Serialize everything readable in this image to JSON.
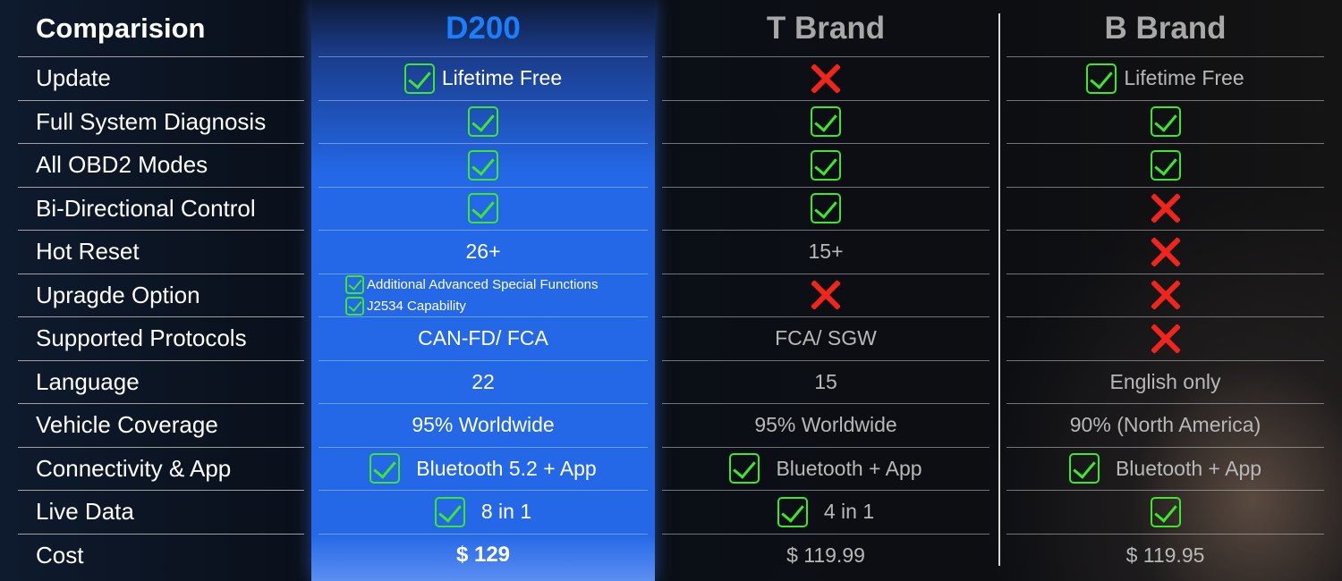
{
  "header": {
    "label_title": "Comparision",
    "products": [
      {
        "name": "D200",
        "color": "#1a7fff"
      },
      {
        "name": "T Brand",
        "color": "#a8a8a8"
      },
      {
        "name": "B Brand",
        "color": "#a8a8a8"
      }
    ]
  },
  "colors": {
    "check": "#3ce82a",
    "cross": "#f2241b",
    "highlight": "#2468e8"
  },
  "rows": [
    {
      "label": "Update",
      "cells": [
        {
          "icon": "check",
          "text": "Lifetime Free"
        },
        {
          "icon": "cross"
        },
        {
          "icon": "check",
          "text": "Lifetime Free"
        }
      ]
    },
    {
      "label": "Full System Diagnosis",
      "cells": [
        {
          "icon": "check"
        },
        {
          "icon": "check"
        },
        {
          "icon": "check"
        }
      ]
    },
    {
      "label": "All OBD2 Modes",
      "cells": [
        {
          "icon": "check"
        },
        {
          "icon": "check"
        },
        {
          "icon": "check"
        }
      ]
    },
    {
      "label": "Bi-Directional Control",
      "cells": [
        {
          "icon": "check"
        },
        {
          "icon": "check"
        },
        {
          "icon": "cross"
        }
      ]
    },
    {
      "label": "Hot Reset",
      "cells": [
        {
          "text": "26+"
        },
        {
          "text": "15+"
        },
        {
          "icon": "cross"
        }
      ]
    },
    {
      "label": "Upragde Option",
      "cells": [
        {
          "lines": [
            "Additional Advanced Special Functions",
            "J2534 Capability"
          ]
        },
        {
          "icon": "cross"
        },
        {
          "icon": "cross"
        }
      ]
    },
    {
      "label": "Supported Protocols",
      "cells": [
        {
          "text": "CAN-FD/ FCA"
        },
        {
          "text": "FCA/ SGW"
        },
        {
          "icon": "cross"
        }
      ]
    },
    {
      "label": "Language",
      "cells": [
        {
          "text": "22"
        },
        {
          "text": "15"
        },
        {
          "text": "English only"
        }
      ]
    },
    {
      "label": "Vehicle Coverage",
      "cells": [
        {
          "text": "95% Worldwide"
        },
        {
          "text": "95% Worldwide"
        },
        {
          "text": "90% (North America)"
        }
      ]
    },
    {
      "label": "Connectivity & App",
      "cells": [
        {
          "icon": "check",
          "text": "Bluetooth 5.2 + App"
        },
        {
          "icon": "check",
          "text": "Bluetooth + App"
        },
        {
          "icon": "check",
          "text": "Bluetooth + App"
        }
      ]
    },
    {
      "label": "Live Data",
      "cells": [
        {
          "icon": "check",
          "text": "8 in 1"
        },
        {
          "icon": "check",
          "text": "4 in 1"
        },
        {
          "icon": "check"
        }
      ]
    },
    {
      "label": "Cost",
      "cells": [
        {
          "text": "$ 129"
        },
        {
          "text": "$ 119.99"
        },
        {
          "text": "$ 119.95"
        }
      ]
    }
  ]
}
